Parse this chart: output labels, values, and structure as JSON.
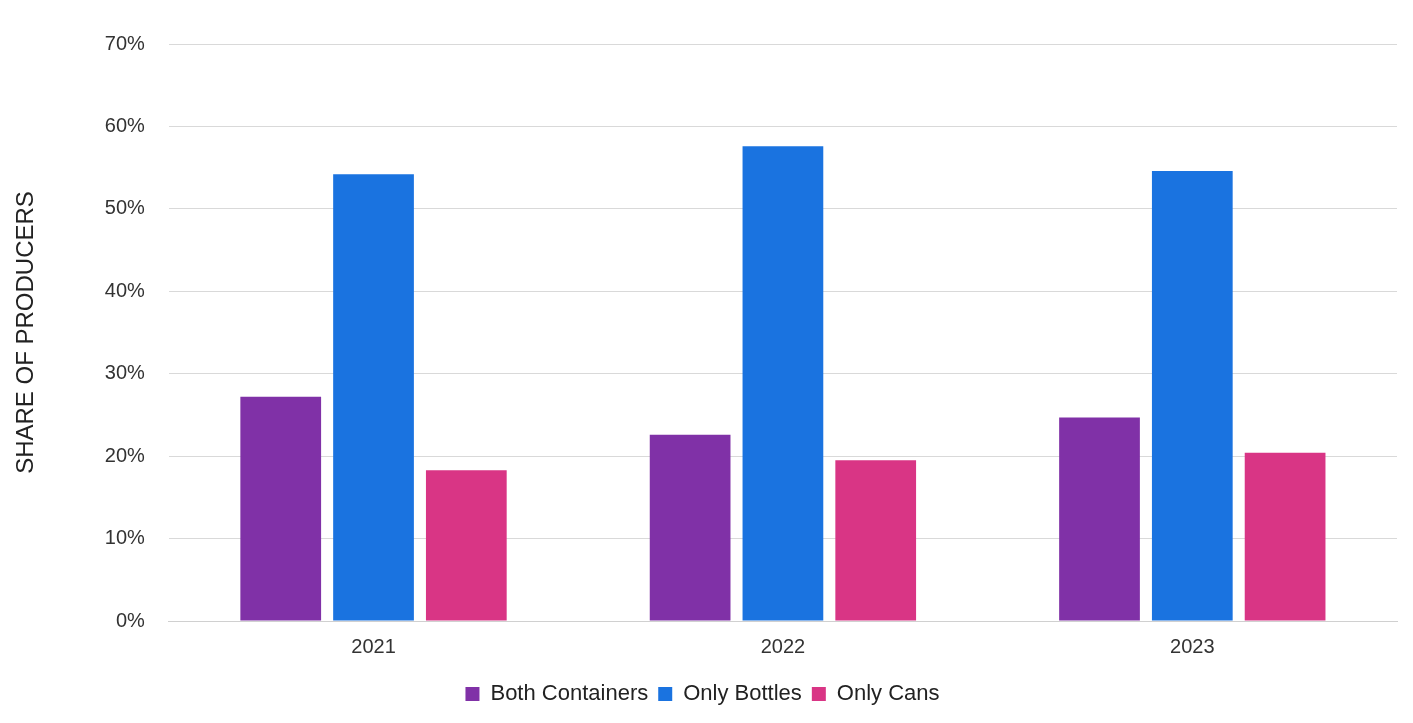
{
  "chart_data": {
    "type": "bar",
    "ylabel": "SHARE OF PRODUCERS",
    "categories": [
      "2021",
      "2022",
      "2023"
    ],
    "series": [
      {
        "name": "Both Containers",
        "color": "#8031a7",
        "values": [
          27.2,
          22.6,
          24.7
        ]
      },
      {
        "name": "Only Bottles",
        "color": "#1a73e0",
        "values": [
          54.2,
          57.6,
          54.6
        ]
      },
      {
        "name": "Only Cans",
        "color": "#d93585",
        "values": [
          18.3,
          19.5,
          20.4
        ]
      }
    ],
    "ylim": [
      0,
      70
    ],
    "yticks": [
      {
        "value": 0,
        "label": "0%"
      },
      {
        "value": 10,
        "label": "10%"
      },
      {
        "value": 20,
        "label": "20%"
      },
      {
        "value": 30,
        "label": "30%"
      },
      {
        "value": 40,
        "label": "40%"
      },
      {
        "value": 50,
        "label": "50%"
      },
      {
        "value": 60,
        "label": "60%"
      },
      {
        "value": 70,
        "label": "70%"
      }
    ],
    "grid": "y",
    "legend": "bottom"
  }
}
